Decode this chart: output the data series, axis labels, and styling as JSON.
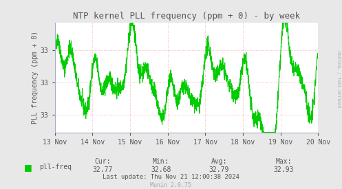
{
  "title": "NTP kernel PLL frequency (ppm + 0) - by week",
  "ylabel": "PLL frequency (ppm + 0)",
  "line_color": "#00cc00",
  "plot_bg_color": "#ffffff",
  "fig_bg_color": "#e8e8e8",
  "grid_color": "#ff9999",
  "axis_color": "#aaaacc",
  "text_color": "#555555",
  "legend_label": "pll-freq",
  "legend_color": "#00cc00",
  "cur_val": "32.77",
  "min_val": "32.68",
  "avg_val": "32.79",
  "max_val": "32.93",
  "last_update": "Last update: Thu Nov 21 12:00:38 2024",
  "munin_text": "Munin 2.0.75",
  "watermark": "RRDTOOL / TOBI OETIKER",
  "ylim_min": 32.63,
  "ylim_max": 32.97,
  "ytick_positions": [
    32.685,
    32.785,
    32.885
  ],
  "ytick_labels": [
    "33",
    "33",
    "33"
  ],
  "x_start": 1731456000,
  "x_end": 1732060800,
  "x_ticks": [
    1731456000,
    1731542400,
    1731628800,
    1731715200,
    1731801600,
    1731888000,
    1731974400,
    1732060800
  ],
  "x_tick_labels": [
    "13 Nov",
    "14 Nov",
    "15 Nov",
    "16 Nov",
    "17 Nov",
    "18 Nov",
    "19 Nov",
    "20 Nov"
  ],
  "figsize": [
    4.97,
    2.75
  ],
  "dpi": 100
}
